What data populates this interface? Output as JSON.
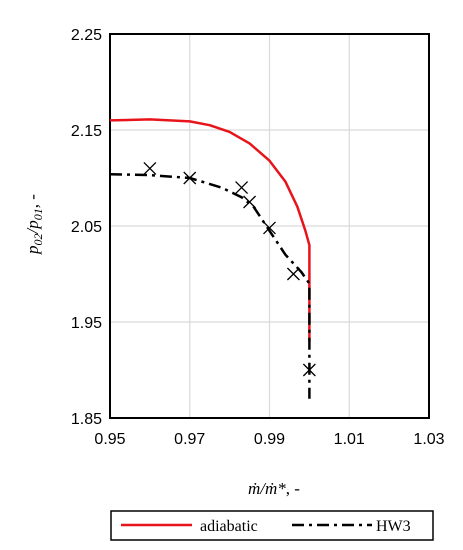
{
  "chart_data": {
    "type": "line",
    "xlabel_main": "ṁ/ṁ*",
    "xlabel_suffix": ", -",
    "ylabel_p1": "p",
    "ylabel_sub1": "02",
    "ylabel_p2": "/p",
    "ylabel_sub2": "01",
    "ylabel_suffix": ", -",
    "xlim": [
      0.95,
      1.03
    ],
    "ylim": [
      1.85,
      2.25
    ],
    "x_ticks": [
      0.95,
      0.97,
      0.99,
      1.01,
      1.03
    ],
    "y_ticks": [
      1.85,
      1.95,
      2.05,
      2.15,
      2.25
    ],
    "x_tick_labels": [
      "0.95",
      "0.97",
      "0.99",
      "1.01",
      "1.03"
    ],
    "y_tick_labels": [
      "1.85",
      "1.95",
      "2.05",
      "2.15",
      "2.25"
    ],
    "grid": true,
    "legend_position": "bottom",
    "series": [
      {
        "name": "adiabatic",
        "color": "#e8141c",
        "style": "solid",
        "x": [
          0.95,
          0.96,
          0.97,
          0.975,
          0.98,
          0.985,
          0.99,
          0.994,
          0.997,
          0.999,
          1.0,
          1.0,
          1.0
        ],
        "y": [
          2.16,
          2.161,
          2.159,
          2.155,
          2.148,
          2.136,
          2.118,
          2.096,
          2.07,
          2.045,
          2.03,
          1.96,
          1.93
        ]
      },
      {
        "name": "HW3",
        "color": "#000000",
        "style": "dashdot",
        "x": [
          0.95,
          0.96,
          0.97,
          0.978,
          0.983,
          0.986,
          0.99,
          0.994,
          0.998,
          1.0,
          1.0
        ],
        "y": [
          2.104,
          2.103,
          2.1,
          2.09,
          2.08,
          2.07,
          2.045,
          2.02,
          2.002,
          1.99,
          1.87
        ],
        "markers_x": [
          0.96,
          0.97,
          0.983,
          0.985,
          0.99,
          0.996,
          1.0
        ],
        "markers_y": [
          2.11,
          2.1,
          2.09,
          2.075,
          2.048,
          2.0,
          1.9
        ]
      }
    ]
  }
}
